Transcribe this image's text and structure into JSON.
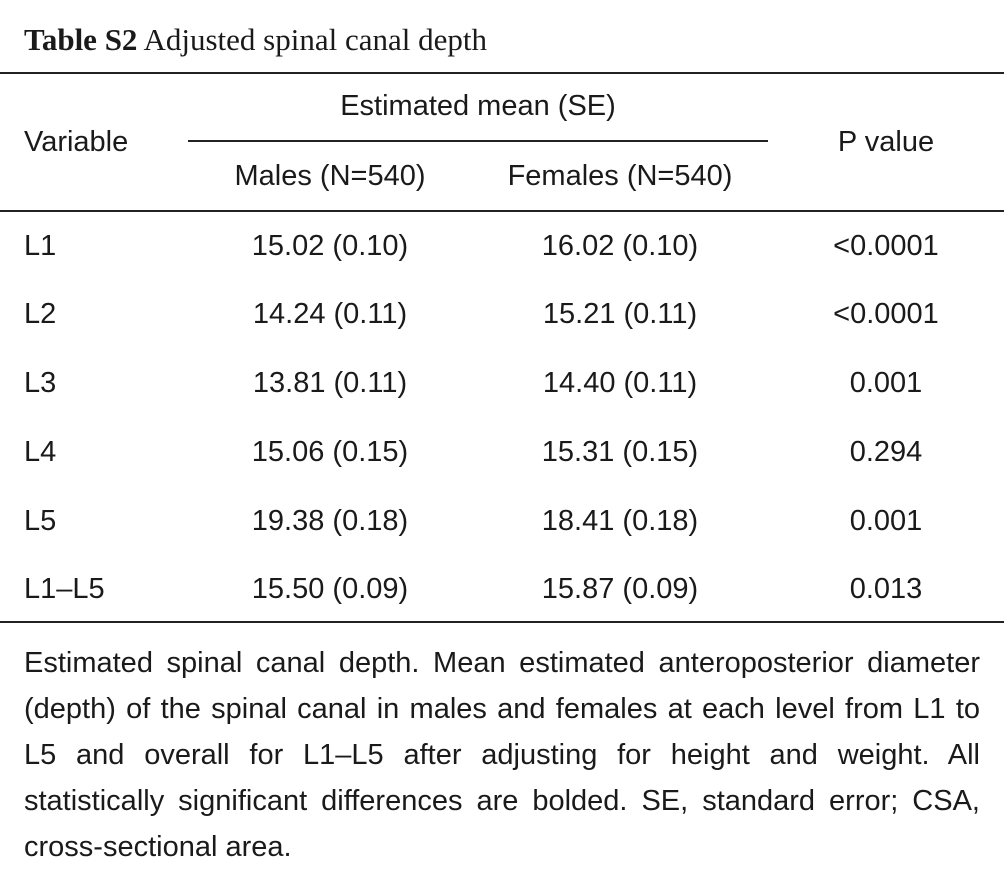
{
  "caption": {
    "label": "Table S2",
    "title": "Adjusted spinal canal depth"
  },
  "table": {
    "header": {
      "variable": "Variable",
      "group": "Estimated mean (SE)",
      "males": "Males (N=540)",
      "females": "Females (N=540)",
      "p_value": "P value"
    },
    "rows": [
      {
        "variable": "L1",
        "males": "15.02 (0.10)",
        "females": "16.02 (0.10)",
        "p": "<0.0001"
      },
      {
        "variable": "L2",
        "males": "14.24 (0.11)",
        "females": "15.21 (0.11)",
        "p": "<0.0001"
      },
      {
        "variable": "L3",
        "males": "13.81 (0.11)",
        "females": "14.40 (0.11)",
        "p": "0.001"
      },
      {
        "variable": "L4",
        "males": "15.06 (0.15)",
        "females": "15.31 (0.15)",
        "p": "0.294"
      },
      {
        "variable": "L5",
        "males": "19.38 (0.18)",
        "females": "18.41 (0.18)",
        "p": "0.001"
      },
      {
        "variable": "L1–L5",
        "males": "15.50 (0.09)",
        "females": "15.87 (0.09)",
        "p": "0.013"
      }
    ]
  },
  "footnote": "Estimated spinal canal depth. Mean estimated anteroposterior diameter (depth) of the spinal canal in males and females at each level from L1 to L5 and overall for L1–L5 after adjusting for height and weight. All statistically significant differences are bolded. SE, standard error; CSA, cross-sectional area."
}
